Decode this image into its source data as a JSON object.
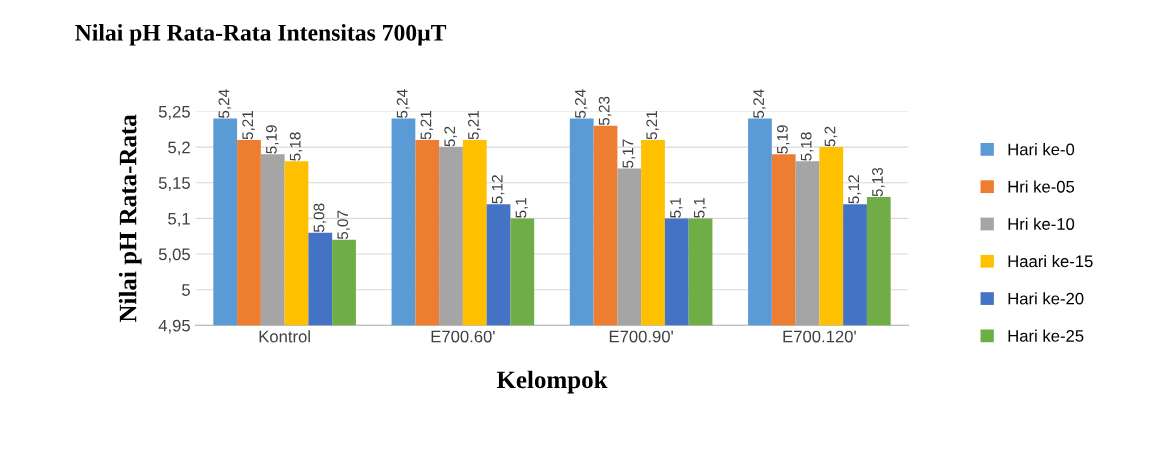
{
  "chart_data": {
    "type": "bar",
    "title": "Nilai pH Rata-Rata Intensitas 700µT",
    "xlabel": "Kelompok",
    "ylabel": "Nilai pH Rata-Rata",
    "categories": [
      "Kontrol",
      "E700.60'",
      "E700.90'",
      "E700.120'"
    ],
    "series": [
      {
        "name": "Hari ke-0",
        "color": "#5b9bd5",
        "values": [
          5.24,
          5.24,
          5.24,
          5.24
        ],
        "value_labels": [
          "5,24",
          "5,24",
          "5,24",
          "5,24"
        ]
      },
      {
        "name": "Hri ke-05",
        "color": "#ed7d31",
        "values": [
          5.21,
          5.21,
          5.23,
          5.19
        ],
        "value_labels": [
          "5,21",
          "5,21",
          "5,23",
          "5,19"
        ]
      },
      {
        "name": "Hri ke-10",
        "color": "#a5a5a5",
        "values": [
          5.19,
          5.2,
          5.17,
          5.18
        ],
        "value_labels": [
          "5,19",
          "5,2",
          "5,17",
          "5,18"
        ]
      },
      {
        "name": "Haari ke-15",
        "color": "#ffc000",
        "values": [
          5.18,
          5.21,
          5.21,
          5.2
        ],
        "value_labels": [
          "5,18",
          "5,21",
          "5,21",
          "5,2"
        ]
      },
      {
        "name": "Hari ke-20",
        "color": "#4472c4",
        "values": [
          5.08,
          5.12,
          5.1,
          5.12
        ],
        "value_labels": [
          "5,08",
          "5,12",
          "5,1",
          "5,12"
        ]
      },
      {
        "name": "Hari ke-25",
        "color": "#70ad47",
        "values": [
          5.07,
          5.1,
          5.1,
          5.13
        ],
        "value_labels": [
          "5,07",
          "5,1",
          "5,1",
          "5,13"
        ]
      }
    ],
    "ylim": [
      4.95,
      5.25
    ],
    "yticks": [
      {
        "value": 4.95,
        "label": "4,95"
      },
      {
        "value": 5,
        "label": "5"
      },
      {
        "value": 5.05,
        "label": "5,05"
      },
      {
        "value": 5.1,
        "label": "5,1"
      },
      {
        "value": 5.15,
        "label": "5,15"
      },
      {
        "value": 5.2,
        "label": "5,2"
      },
      {
        "value": 5.25,
        "label": "5,25"
      }
    ],
    "grid": "y",
    "legend": "right"
  }
}
